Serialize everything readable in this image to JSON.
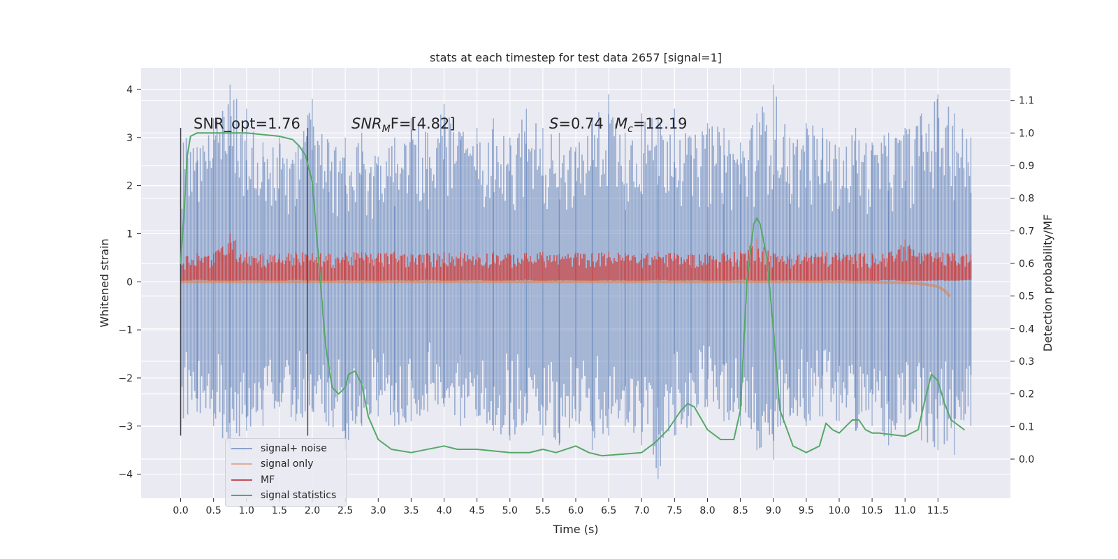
{
  "chart_data": {
    "type": "line",
    "title": "stats at each timestep for test data 2657 [signal=1]",
    "xlabel": "Time (s)",
    "ylabel_left": "Whitened strain",
    "ylabel_right": "Detection probability/MF",
    "xlim": [
      -0.6,
      12.6
    ],
    "ylim_left": [
      -4.5,
      4.45
    ],
    "ylim_right": [
      -0.12,
      1.2
    ],
    "x_ticks": [
      "0.0",
      "0.5",
      "1.0",
      "1.5",
      "2.0",
      "2.5",
      "3.0",
      "3.5",
      "4.0",
      "4.5",
      "5.0",
      "5.5",
      "6.0",
      "6.5",
      "7.0",
      "7.5",
      "8.0",
      "8.5",
      "9.0",
      "9.5",
      "10.0",
      "10.5",
      "11.0",
      "11.5"
    ],
    "y_ticks_left": [
      "4",
      "3",
      "2",
      "1",
      "0",
      "−1",
      "−2",
      "−3",
      "−4"
    ],
    "y_ticks_right": [
      "1.1",
      "1.0",
      "0.9",
      "0.8",
      "0.7",
      "0.6",
      "0.5",
      "0.4",
      "0.3",
      "0.2",
      "0.1",
      "0.0"
    ],
    "grid": true,
    "legend_position": "lower left",
    "annotations": {
      "snr_opt": "SNR_opt=1.76",
      "snr_mf": "SNR",
      "snr_mf_sub": "M",
      "snr_mf_rest": "F=[4.82]",
      "s_label": "S",
      "s_value": "=0.74",
      "mc_label": "M",
      "mc_sub": "c",
      "mc_value": "=12.19"
    },
    "vertical_markers_s": [
      0.0,
      1.93
    ],
    "series": [
      {
        "name": "signal+ noise",
        "color": "#4c72b0",
        "axis": "left",
        "x_range": [
          0.0,
          12.0
        ],
        "envelope_max": [
          3.2,
          2.8,
          3.4,
          4.1,
          3.6,
          2.9,
          3.0,
          2.7,
          3.8,
          2.9,
          3.0,
          3.1,
          2.6,
          3.0,
          3.4,
          3.1,
          3.7,
          3.1,
          3.2,
          3.4,
          3.0,
          3.6,
          3.2,
          3.1,
          2.8,
          3.4,
          3.9,
          3.1,
          3.5,
          3.4,
          3.6,
          3.0,
          3.3,
          3.2,
          2.9,
          3.5,
          4.1,
          3.0,
          3.3,
          3.2,
          2.8,
          3.2,
          2.9,
          3.1,
          3.2,
          3.5,
          3.9,
          3.5,
          3.0
        ],
        "envelope_min": [
          -3.2,
          -2.7,
          -3.0,
          -3.5,
          -3.1,
          -3.0,
          -2.6,
          -2.9,
          -2.7,
          -3.0,
          -3.5,
          -3.0,
          -2.8,
          -3.0,
          -2.9,
          -2.7,
          -2.6,
          -3.0,
          -2.8,
          -3.1,
          -3.3,
          -2.9,
          -3.2,
          -3.4,
          -2.9,
          -3.5,
          -3.2,
          -3.0,
          -3.4,
          -4.1,
          -3.2,
          -3.0,
          -2.6,
          -2.9,
          -3.0,
          -3.5,
          -3.7,
          -2.8,
          -3.0,
          -2.8,
          -2.9,
          -3.1,
          -3.0,
          -3.4,
          -3.2,
          -3.3,
          -3.5,
          -3.6,
          -3.0
        ]
      },
      {
        "name": "signal only",
        "color": "#dd8452",
        "axis": "left",
        "x": [
          0.0,
          10.0,
          10.6,
          11.0,
          11.3,
          11.5,
          11.6,
          11.68
        ],
        "y": [
          0.0,
          0.0,
          -0.01,
          -0.02,
          -0.05,
          -0.1,
          -0.18,
          -0.3
        ]
      },
      {
        "name": "MF",
        "color": "#c44e52",
        "axis": "left",
        "x_range": [
          0.0,
          12.0
        ],
        "envelope_max": [
          0.55,
          0.6,
          0.58,
          1.0,
          0.62,
          0.6,
          0.58,
          0.63,
          0.6,
          0.59,
          0.61,
          0.62,
          0.6,
          0.64,
          0.58,
          0.6,
          0.61,
          0.62,
          0.6,
          0.63,
          0.59,
          0.6,
          0.62,
          0.58,
          0.61,
          0.6,
          0.63,
          0.6,
          0.59,
          0.62,
          0.6,
          0.58,
          0.6,
          0.61,
          0.62,
          0.9,
          0.6,
          0.58,
          0.6,
          0.62,
          0.61,
          0.6,
          0.6,
          0.6,
          0.88,
          0.6,
          0.62,
          0.6,
          0.58
        ],
        "envelope_min": [
          0.02,
          0.05,
          0.03,
          0.02,
          0.04,
          0.03,
          0.02,
          0.05,
          0.03,
          0.02,
          0.04,
          0.03,
          0.02,
          0.04,
          0.03,
          0.05,
          0.02,
          0.03,
          0.04,
          0.02,
          0.03,
          0.05,
          0.02,
          0.04,
          0.03,
          0.02,
          0.04,
          0.03,
          0.02,
          0.05,
          0.03,
          0.04,
          0.02,
          0.03,
          0.05,
          0.02,
          0.03,
          0.04,
          0.02,
          0.03,
          0.04,
          0.02,
          0.03,
          0.05,
          0.02,
          0.03,
          0.04,
          0.03,
          0.05
        ]
      },
      {
        "name": "signal statistics",
        "color": "#55a868",
        "axis": "right",
        "x": [
          0.0,
          0.05,
          0.1,
          0.15,
          0.25,
          0.5,
          1.0,
          1.5,
          1.7,
          1.8,
          1.9,
          2.0,
          2.1,
          2.2,
          2.3,
          2.4,
          2.5,
          2.55,
          2.65,
          2.75,
          2.85,
          3.0,
          3.2,
          3.5,
          4.0,
          4.2,
          4.5,
          5.0,
          5.3,
          5.5,
          5.7,
          6.0,
          6.2,
          6.4,
          7.0,
          7.2,
          7.4,
          7.6,
          7.7,
          7.8,
          8.0,
          8.2,
          8.4,
          8.5,
          8.6,
          8.7,
          8.75,
          8.8,
          8.9,
          9.0,
          9.1,
          9.3,
          9.5,
          9.7,
          9.8,
          9.9,
          10.0,
          10.1,
          10.2,
          10.3,
          10.4,
          10.5,
          10.6,
          11.0,
          11.2,
          11.3,
          11.4,
          11.5,
          11.6,
          11.7,
          11.9
        ],
        "y": [
          0.6,
          0.75,
          0.93,
          0.99,
          1.0,
          1.0,
          1.0,
          0.99,
          0.98,
          0.96,
          0.93,
          0.85,
          0.6,
          0.35,
          0.22,
          0.2,
          0.22,
          0.26,
          0.27,
          0.23,
          0.13,
          0.06,
          0.03,
          0.02,
          0.04,
          0.03,
          0.03,
          0.02,
          0.02,
          0.03,
          0.02,
          0.04,
          0.02,
          0.01,
          0.02,
          0.05,
          0.09,
          0.15,
          0.17,
          0.16,
          0.09,
          0.06,
          0.06,
          0.15,
          0.55,
          0.72,
          0.74,
          0.72,
          0.62,
          0.4,
          0.15,
          0.04,
          0.02,
          0.04,
          0.11,
          0.09,
          0.08,
          0.1,
          0.12,
          0.12,
          0.09,
          0.08,
          0.08,
          0.07,
          0.09,
          0.18,
          0.26,
          0.24,
          0.17,
          0.12,
          0.09
        ]
      }
    ]
  }
}
